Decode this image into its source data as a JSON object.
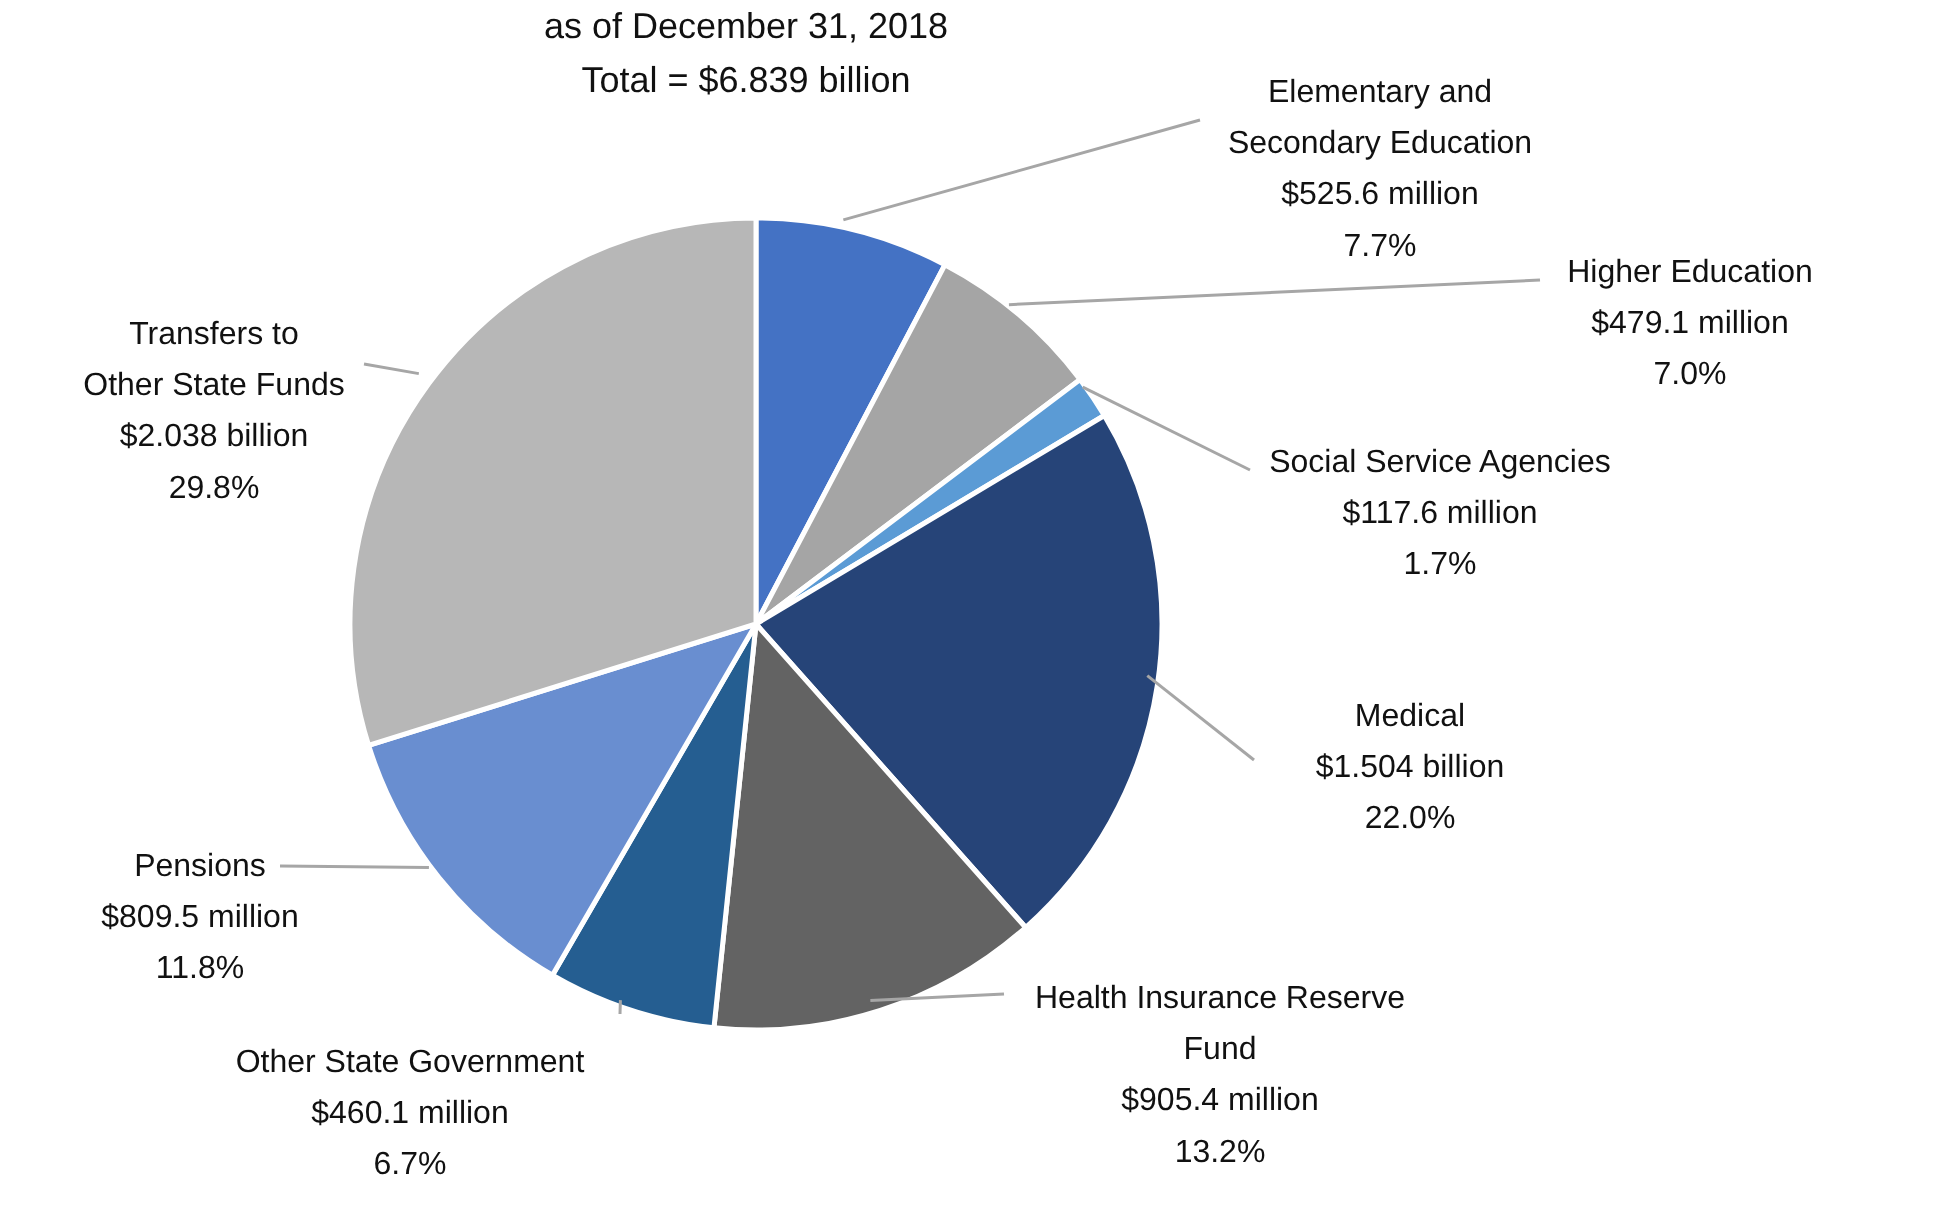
{
  "chart_data": {
    "type": "pie",
    "subtitle": "as of December 31, 2018",
    "annotations": [
      "Total = $6.839 billion"
    ],
    "categories": [
      "Elementary and Secondary Education",
      "Higher Education",
      "Social Service Agencies",
      "Medical",
      "Health Insurance Reserve Fund",
      "Other State Government",
      "Pensions",
      "Transfers to Other State Funds"
    ],
    "values": [
      7.7,
      7.0,
      1.7,
      22.0,
      13.2,
      6.7,
      11.8,
      29.8
    ],
    "value_labels": [
      "$525.6 million\n7.7%",
      "$479.1 million\n7.0%",
      "$117.6 million\n1.7%",
      "$1.504 billion\n22.0%",
      "$905.4 million\n13.2%",
      "$460.1 million\n6.7%",
      "$809.5 million\n11.8%",
      "$2.038 billion\n29.8%"
    ],
    "colors": [
      "#4472c4",
      "#a5a5a5",
      "#5b9bd5",
      "#264478",
      "#636363",
      "#255e91",
      "#698ed0",
      "#b7b7b7"
    ],
    "legend": false
  }
}
